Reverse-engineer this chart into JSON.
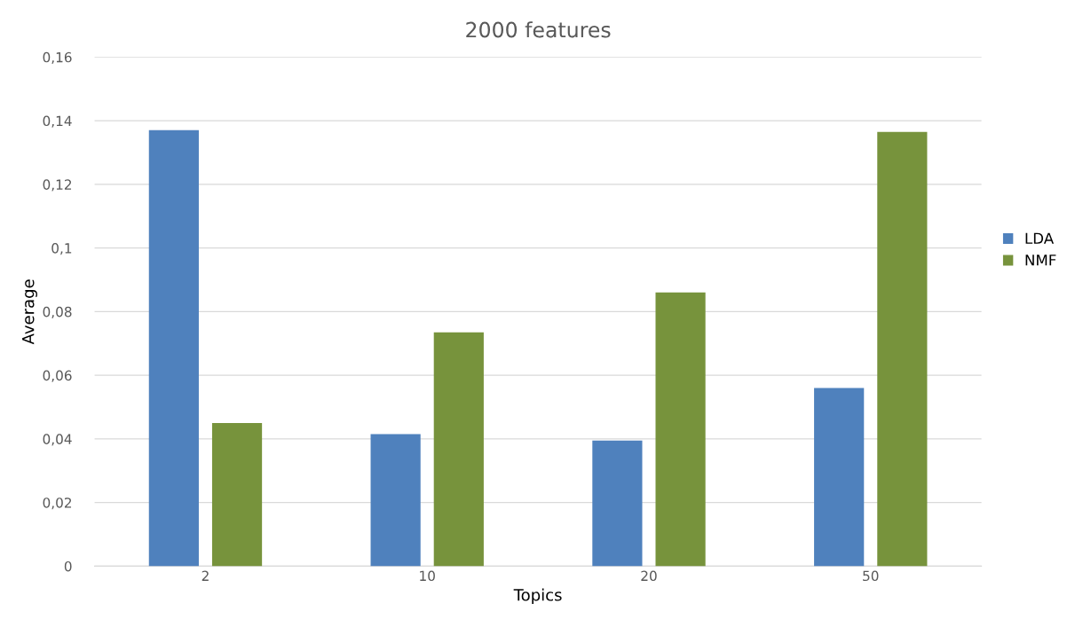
{
  "chart_data": {
    "type": "bar",
    "title": "2000 features",
    "xlabel": "Topics",
    "ylabel": "Average",
    "categories": [
      "2",
      "10",
      "20",
      "50"
    ],
    "series": [
      {
        "name": "LDA",
        "color": "#4f81bd",
        "values": [
          0.137,
          0.0415,
          0.0395,
          0.056
        ]
      },
      {
        "name": "NMF",
        "color": "#77933c",
        "values": [
          0.045,
          0.0735,
          0.086,
          0.1365
        ]
      }
    ],
    "ylim": [
      0,
      0.16
    ],
    "yticks": [
      0,
      {
        "value": 0.02,
        "label": "0,02"
      },
      {
        "value": 0.04,
        "label": "0,04"
      },
      {
        "value": 0.06,
        "label": "0,06"
      },
      {
        "value": 0.08,
        "label": "0,08"
      },
      {
        "value": 0.1,
        "label": "0,1"
      },
      {
        "value": 0.12,
        "label": "0,12"
      },
      {
        "value": 0.14,
        "label": "0,14"
      },
      {
        "value": 0.16,
        "label": "0,16"
      }
    ],
    "grid": "y",
    "legend": "right"
  }
}
